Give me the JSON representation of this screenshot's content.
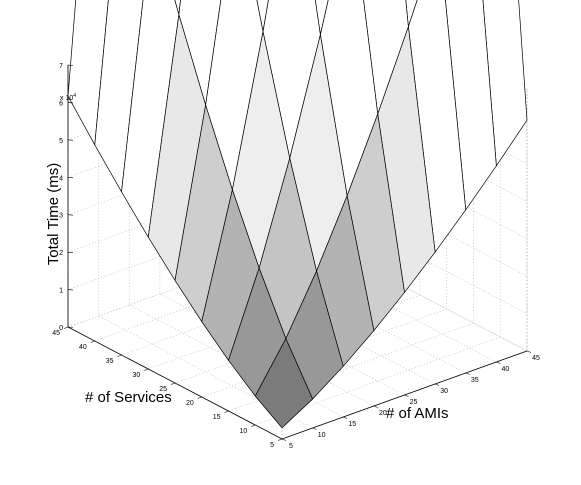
{
  "chart_data": {
    "type": "surface3d",
    "title": "",
    "xlabel": "# of AMIs",
    "ylabel": "# of Services",
    "zlabel": "Total Time (ms)",
    "z_exponent_label": "x 10",
    "z_exponent": "4",
    "x_values": [
      5,
      10,
      15,
      20,
      25,
      30,
      35,
      40,
      45
    ],
    "y_values": [
      5,
      10,
      15,
      20,
      25,
      30,
      35,
      40,
      45
    ],
    "x_tick_labels": [
      "5",
      "10",
      "15",
      "20",
      "25",
      "30",
      "35",
      "40",
      "45"
    ],
    "y_tick_labels": [
      "5",
      "10",
      "15",
      "20",
      "25",
      "30",
      "35",
      "40",
      "45"
    ],
    "z_tick_labels": [
      "0",
      "1",
      "2",
      "3",
      "4",
      "5",
      "6",
      "7"
    ],
    "zlim": [
      0,
      70000
    ],
    "model": "z = 35 * (x * y)^1.38 (ms), estimated from the surface",
    "grid": true,
    "box": true,
    "colormap": "gray"
  }
}
